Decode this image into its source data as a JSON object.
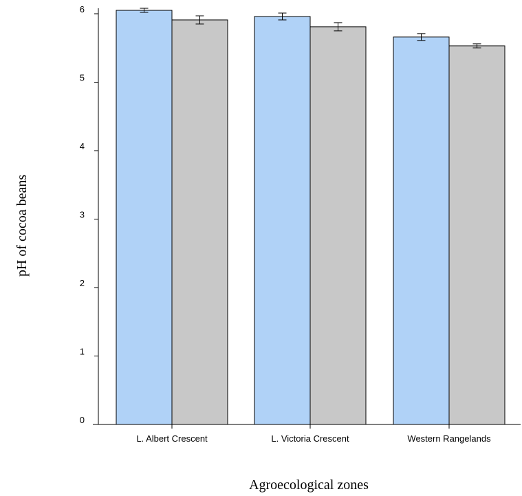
{
  "chart_data": {
    "type": "bar",
    "title": "",
    "xlabel": "Agroecological zones",
    "ylabel": "pH of cocoa beans",
    "categories": [
      "L. Albert Crescent",
      "L. Victoria Crescent",
      "Western Rangelands"
    ],
    "series": [
      {
        "values": [
          6.05,
          5.96,
          5.66
        ],
        "errors": [
          0.03,
          0.05,
          0.05
        ],
        "color": "#b0d2f7"
      },
      {
        "values": [
          5.91,
          5.81,
          5.53
        ],
        "errors": [
          0.06,
          0.06,
          0.03
        ],
        "color": "#c8c8c8"
      }
    ],
    "ylim": [
      0,
      6
    ],
    "yticks": [
      0,
      1,
      2,
      3,
      4,
      5,
      6
    ],
    "grid": false,
    "legend": "none"
  }
}
